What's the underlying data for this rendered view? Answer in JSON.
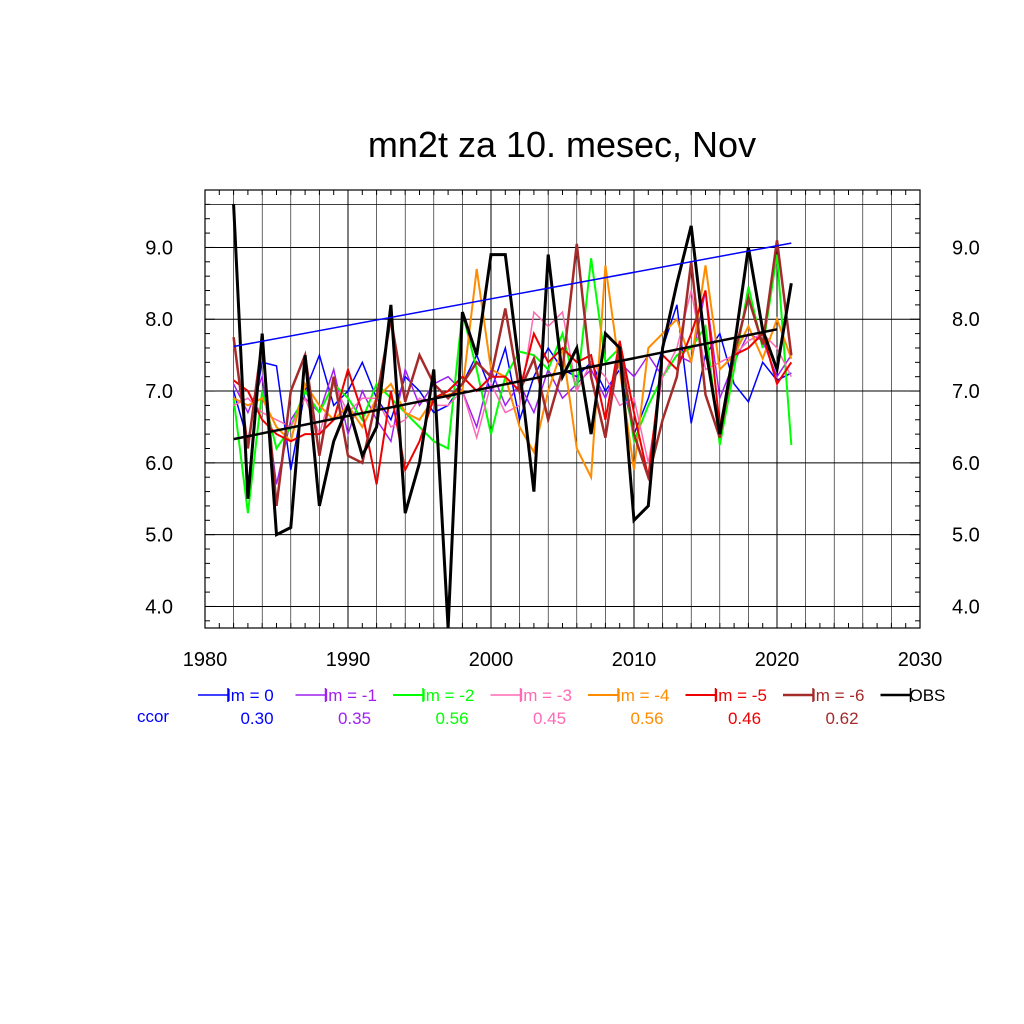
{
  "chart_data": {
    "type": "line",
    "title": "mn2t za 10. mesec, Nov",
    "xlim": [
      1980,
      2030
    ],
    "ylim": [
      3.7,
      9.8
    ],
    "x_ticks": [
      1980,
      1990,
      2000,
      2010,
      2020,
      2030
    ],
    "x_tick_labels": [
      "1980",
      "1990",
      "2000",
      "2010",
      "2020",
      "2030"
    ],
    "y_ticks": [
      4.0,
      5.0,
      6.0,
      7.0,
      8.0,
      9.0
    ],
    "y_tick_labels": [
      "4.0",
      "5.0",
      "6.0",
      "7.0",
      "8.0",
      "9.0"
    ],
    "grid": true,
    "legend_placement": "bottom",
    "ccor_label": "ccor",
    "x": [
      1982,
      1983,
      1984,
      1985,
      1986,
      1987,
      1988,
      1989,
      1990,
      1991,
      1992,
      1993,
      1994,
      1995,
      1996,
      1997,
      1998,
      1999,
      2000,
      2001,
      2002,
      2003,
      2004,
      2005,
      2006,
      2007,
      2008,
      2009,
      2010,
      2011,
      2012,
      2013,
      2014,
      2015,
      2016,
      2017,
      2018,
      2019,
      2020,
      2021
    ],
    "series": [
      {
        "name": "lm = 0",
        "color": "#0000ff",
        "width": 1.5,
        "ccor": "0.30",
        "values": [
          7.0,
          6.3,
          7.4,
          7.35,
          5.9,
          7.0,
          7.5,
          6.8,
          7.0,
          7.4,
          6.9,
          6.6,
          7.2,
          7.0,
          6.7,
          6.8,
          7.1,
          7.5,
          7.0,
          7.6,
          6.6,
          7.2,
          7.6,
          7.3,
          7.2,
          7.4,
          7.0,
          7.3,
          6.4,
          6.9,
          7.6,
          8.2,
          6.55,
          7.5,
          7.8,
          7.1,
          6.85,
          7.4,
          7.15,
          7.25
        ]
      },
      {
        "name": "lm = -1",
        "color": "#a020f0",
        "width": 1.5,
        "ccor": "0.35",
        "values": [
          7.1,
          6.7,
          7.2,
          5.7,
          6.6,
          6.9,
          6.7,
          7.3,
          6.4,
          7.0,
          6.6,
          6.3,
          7.3,
          6.8,
          7.1,
          7.2,
          7.0,
          6.5,
          7.3,
          6.8,
          7.1,
          6.7,
          7.3,
          6.9,
          7.1,
          7.3,
          6.9,
          7.4,
          7.2,
          7.5,
          7.2,
          7.5,
          7.4,
          8.4,
          6.9,
          7.4,
          7.8,
          7.7,
          7.2,
          7.5
        ]
      },
      {
        "name": "lm = -2",
        "color": "#00ff00",
        "width": 2.0,
        "ccor": "0.56",
        "values": [
          6.9,
          5.3,
          7.0,
          6.2,
          6.5,
          7.0,
          6.7,
          7.1,
          6.9,
          6.6,
          7.1,
          6.9,
          6.7,
          6.5,
          6.3,
          6.2,
          8.1,
          7.3,
          6.4,
          7.2,
          7.55,
          7.5,
          7.3,
          7.8,
          7.0,
          8.85,
          7.4,
          7.6,
          6.3,
          6.8,
          7.2,
          7.5,
          7.6,
          7.9,
          6.25,
          7.3,
          8.45,
          7.6,
          8.9,
          6.25
        ]
      },
      {
        "name": "lm = -3",
        "color": "#ff69b4",
        "width": 1.5,
        "ccor": "0.45",
        "values": [
          6.8,
          6.9,
          6.7,
          6.6,
          6.5,
          6.9,
          6.4,
          7.1,
          6.7,
          6.9,
          6.9,
          6.5,
          6.6,
          6.9,
          6.8,
          6.8,
          7.0,
          6.35,
          7.1,
          6.7,
          6.8,
          8.1,
          7.9,
          8.1,
          7.0,
          7.4,
          7.2,
          6.8,
          6.9,
          6.0,
          7.2,
          7.6,
          8.4,
          7.3,
          7.4,
          7.5,
          7.7,
          7.8,
          7.6,
          7.2
        ]
      },
      {
        "name": "lm = -4",
        "color": "#ff8c00",
        "width": 2.0,
        "ccor": "0.56",
        "values": [
          6.9,
          6.8,
          6.9,
          6.5,
          6.3,
          7.1,
          6.8,
          6.6,
          6.8,
          6.5,
          6.9,
          7.1,
          6.7,
          6.6,
          6.9,
          6.95,
          7.0,
          8.7,
          7.3,
          7.2,
          6.5,
          6.15,
          7.0,
          7.6,
          6.2,
          5.8,
          8.75,
          7.3,
          5.9,
          7.6,
          7.8,
          8.0,
          7.4,
          8.75,
          7.3,
          7.5,
          7.9,
          7.45,
          8.0,
          7.45
        ]
      },
      {
        "name": "lm = -5",
        "color": "#ee0000",
        "width": 2.0,
        "ccor": "0.46",
        "values": [
          7.15,
          7.0,
          6.6,
          6.4,
          6.3,
          6.4,
          6.4,
          6.6,
          7.3,
          6.7,
          5.7,
          7.0,
          5.9,
          6.3,
          6.9,
          7.0,
          7.2,
          7.0,
          7.2,
          7.2,
          7.0,
          7.8,
          7.4,
          7.6,
          7.4,
          7.5,
          6.6,
          7.7,
          6.7,
          5.8,
          7.5,
          7.3,
          7.8,
          8.4,
          6.5,
          7.5,
          7.6,
          7.8,
          7.1,
          7.4
        ]
      },
      {
        "name": "lm = -6",
        "color": "#a52a2a",
        "width": 2.5,
        "ccor": "0.62",
        "values": [
          7.75,
          6.2,
          7.7,
          5.4,
          7.0,
          7.5,
          6.1,
          7.2,
          6.1,
          6.0,
          6.9,
          8.0,
          6.85,
          7.5,
          7.1,
          6.9,
          7.1,
          7.4,
          7.2,
          8.15,
          7.0,
          7.45,
          6.6,
          7.3,
          9.05,
          7.2,
          6.35,
          7.6,
          6.4,
          5.8,
          6.6,
          7.2,
          8.8,
          6.95,
          6.35,
          7.5,
          8.3,
          7.65,
          9.1,
          7.5
        ]
      },
      {
        "name": "OBS",
        "color": "#000000",
        "width": 3.0,
        "ccor": "",
        "values": [
          9.6,
          5.5,
          7.8,
          5.0,
          5.1,
          7.5,
          5.4,
          6.3,
          6.8,
          6.1,
          6.5,
          8.2,
          5.3,
          6.0,
          7.3,
          3.7,
          8.1,
          7.5,
          8.9,
          8.9,
          7.3,
          5.6,
          8.9,
          7.2,
          7.6,
          6.4,
          7.8,
          7.6,
          5.2,
          5.4,
          7.6,
          8.5,
          9.3,
          7.6,
          6.4,
          7.6,
          9.0,
          7.85,
          7.3,
          8.5
        ]
      }
    ],
    "trend_lines": [
      {
        "name": "trend lm = 0",
        "color": "#0000ff",
        "width": 1.5,
        "x": [
          1982,
          2021
        ],
        "y": [
          7.62,
          9.06
        ]
      },
      {
        "name": "trend OBS",
        "color": "#000000",
        "width": 2.5,
        "x": [
          1982,
          2020
        ],
        "y": [
          6.33,
          7.86
        ]
      }
    ]
  }
}
